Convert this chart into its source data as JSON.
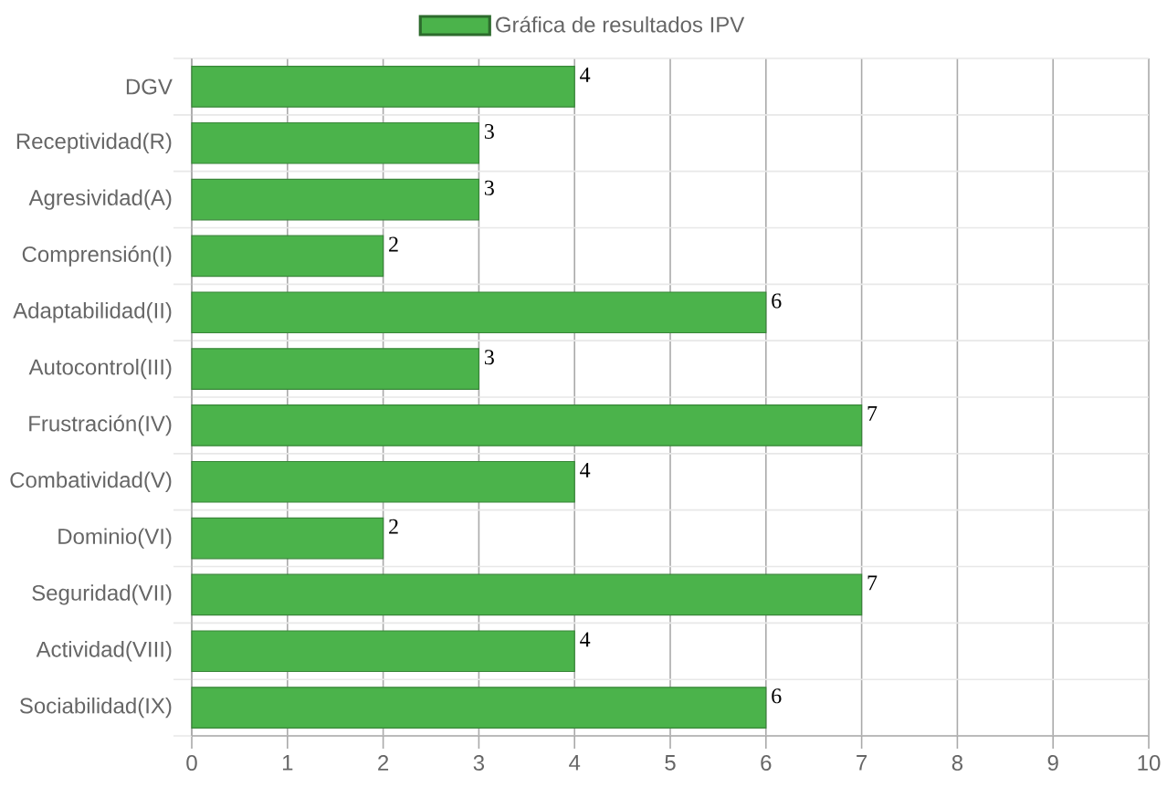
{
  "chart_data": {
    "type": "bar",
    "orientation": "horizontal",
    "categories": [
      "DGV",
      "Receptividad(R)",
      "Agresividad(A)",
      "Comprensión(I)",
      "Adaptabilidad(II)",
      "Autocontrol(III)",
      "Frustración(IV)",
      "Combatividad(V)",
      "Dominio(VI)",
      "Seguridad(VII)",
      "Actividad(VIII)",
      "Sociabilidad(IX)"
    ],
    "series": [
      {
        "name": "Gráfica de resultados IPV",
        "color": "#4bb34b",
        "values": [
          4,
          3,
          3,
          2,
          6,
          3,
          7,
          4,
          2,
          7,
          4,
          6
        ]
      }
    ],
    "xlim": [
      0,
      10
    ],
    "xticks": [
      0,
      1,
      2,
      3,
      4,
      5,
      6,
      7,
      8,
      9,
      10
    ],
    "grid": true,
    "legend": "top",
    "data_labels": true
  }
}
